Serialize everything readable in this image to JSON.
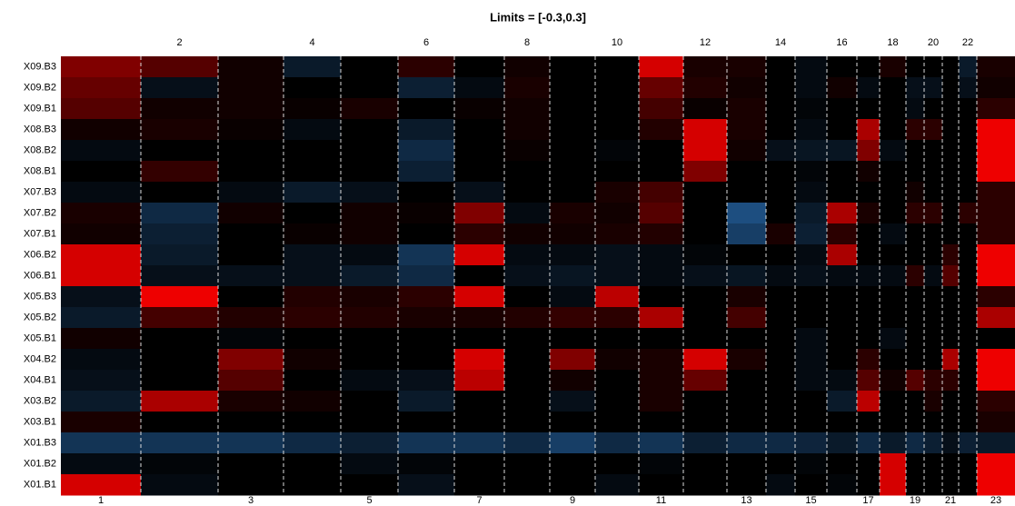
{
  "chart_data": {
    "type": "heatmap",
    "title": "Limits = [-0.3,0.3]",
    "zlim": [
      -0.3,
      0.3
    ],
    "colors": [
      "#3a9bff",
      "#000000",
      "#ff0000"
    ],
    "categories": [
      "1",
      "2",
      "3",
      "4",
      "5",
      "6",
      "7",
      "8",
      "9",
      "10",
      "11",
      "12",
      "13",
      "14",
      "15",
      "16",
      "17",
      "18",
      "19",
      "20",
      "21",
      "22",
      "23"
    ],
    "rows": [
      {
        "name": "X09.B3",
        "values": [
          0.15,
          0.1,
          0.02,
          -0.05,
          0,
          0.05,
          0,
          0.02,
          0,
          0,
          0.25,
          0.03,
          0.03,
          0,
          -0.02,
          0,
          0,
          0.03,
          0,
          0,
          0,
          -0.05,
          0.03
        ]
      },
      {
        "name": "X09.B2",
        "values": [
          0.12,
          -0.03,
          0.02,
          0,
          0,
          -0.06,
          -0.02,
          0.03,
          0,
          0,
          0.12,
          0.04,
          0.02,
          0,
          -0.02,
          0.02,
          -0.02,
          0,
          -0.03,
          -0.03,
          0,
          -0.03,
          0.02
        ]
      },
      {
        "name": "X09.B1",
        "values": [
          0.1,
          0.02,
          0.02,
          0.01,
          0.03,
          0,
          0.01,
          0.02,
          0,
          0,
          0.08,
          0.01,
          0.03,
          0,
          -0.01,
          0,
          0,
          0,
          -0.02,
          0,
          0,
          0,
          0.05
        ]
      },
      {
        "name": "X08.B3",
        "values": [
          0.02,
          0.03,
          0.01,
          -0.02,
          0,
          -0.05,
          0,
          0.02,
          0,
          0,
          0.04,
          0.25,
          0.03,
          0,
          -0.02,
          0,
          0.2,
          0,
          0.05,
          0.05,
          0,
          0,
          0.28
        ]
      },
      {
        "name": "X08.B2",
        "values": [
          -0.02,
          0,
          0,
          0,
          0,
          -0.08,
          0,
          0.01,
          0,
          -0.01,
          0,
          0.25,
          0.02,
          -0.03,
          -0.04,
          -0.04,
          0.15,
          -0.02,
          0,
          0,
          0,
          0,
          0.28
        ]
      },
      {
        "name": "X08.B1",
        "values": [
          0,
          0.06,
          0,
          0,
          0,
          -0.06,
          0,
          0,
          0,
          0,
          0,
          0.15,
          0,
          0,
          -0.01,
          0,
          0.02,
          0,
          0,
          0,
          0,
          0,
          0.28
        ]
      },
      {
        "name": "X07.B3",
        "values": [
          -0.02,
          0,
          -0.02,
          -0.05,
          -0.03,
          0,
          -0.03,
          0,
          0,
          0.03,
          0.08,
          0,
          0,
          0,
          -0.02,
          0,
          0,
          0,
          0.02,
          0,
          0,
          0,
          0.05
        ]
      },
      {
        "name": "X07.B2",
        "values": [
          0.03,
          -0.08,
          0.02,
          0,
          0.02,
          0.01,
          0.15,
          -0.02,
          0.03,
          0.02,
          0.1,
          0,
          -0.15,
          0,
          -0.05,
          0.2,
          0.03,
          0,
          0.05,
          0.05,
          0,
          0.05,
          0.05
        ]
      },
      {
        "name": "X07.B1",
        "values": [
          0.02,
          -0.06,
          0,
          0.01,
          0.02,
          0,
          0.05,
          0.02,
          0.02,
          0.03,
          0.04,
          0,
          -0.12,
          0.03,
          -0.06,
          0.05,
          0,
          -0.02,
          0,
          0,
          0,
          0,
          0.05
        ]
      },
      {
        "name": "X06.B2",
        "values": [
          0.25,
          -0.05,
          0,
          -0.03,
          -0.02,
          -0.1,
          0.25,
          -0.02,
          -0.02,
          -0.03,
          -0.02,
          -0.01,
          0,
          0,
          -0.02,
          0.2,
          0,
          0,
          0,
          0,
          0.05,
          0,
          0.28
        ]
      },
      {
        "name": "X06.B1",
        "values": [
          0.25,
          -0.03,
          -0.03,
          -0.03,
          -0.05,
          -0.08,
          0,
          -0.03,
          -0.04,
          -0.03,
          -0.02,
          -0.03,
          -0.04,
          -0.02,
          -0.03,
          -0.02,
          -0.02,
          -0.02,
          0.05,
          -0.02,
          0.1,
          0,
          0.28
        ]
      },
      {
        "name": "X05.B3",
        "values": [
          -0.03,
          0.28,
          0,
          0.04,
          0.03,
          0.05,
          0.25,
          0,
          -0.02,
          0.22,
          0,
          0,
          0.03,
          0,
          0,
          0,
          0,
          0,
          0,
          0,
          0,
          0,
          0.05
        ]
      },
      {
        "name": "X05.B2",
        "values": [
          -0.05,
          0.08,
          0.04,
          0.05,
          0.04,
          0.03,
          0.03,
          0.04,
          0.06,
          0.05,
          0.2,
          0,
          0.08,
          0,
          0,
          0,
          0,
          0,
          0,
          0,
          0,
          0,
          0.2
        ]
      },
      {
        "name": "X05.B1",
        "values": [
          0.02,
          0,
          -0.01,
          0,
          0,
          0,
          0,
          0,
          0,
          0,
          0,
          0,
          0,
          0,
          -0.02,
          0,
          0,
          -0.02,
          0,
          0,
          0,
          0,
          0
        ]
      },
      {
        "name": "X04.B2",
        "values": [
          -0.02,
          0,
          0.15,
          0.02,
          0,
          0,
          0.25,
          0,
          0.15,
          0.02,
          0.03,
          0.25,
          0.03,
          0,
          -0.02,
          0,
          0.05,
          0,
          0,
          0,
          0.2,
          0,
          0.28
        ]
      },
      {
        "name": "X04.B1",
        "values": [
          -0.03,
          0,
          0.1,
          0,
          -0.02,
          -0.03,
          0.22,
          0,
          0.02,
          0,
          0.03,
          0.12,
          0,
          0,
          -0.02,
          -0.02,
          0.1,
          0.02,
          0.1,
          0.05,
          0.05,
          0,
          0.28
        ]
      },
      {
        "name": "X03.B2",
        "values": [
          -0.05,
          0.2,
          0.03,
          0.02,
          0,
          -0.05,
          0,
          0,
          -0.03,
          0,
          0.03,
          0,
          0,
          0,
          0,
          -0.05,
          0.22,
          0,
          0,
          0.03,
          0,
          0,
          0.05
        ]
      },
      {
        "name": "X03.B1",
        "values": [
          0.03,
          0,
          0,
          0,
          0,
          0,
          0,
          0,
          0,
          0,
          0,
          0,
          0,
          0,
          0,
          0,
          0,
          0,
          0,
          0,
          0,
          0,
          0.03
        ]
      },
      {
        "name": "X01.B3",
        "values": [
          -0.1,
          -0.1,
          -0.1,
          -0.08,
          -0.06,
          -0.1,
          -0.1,
          -0.08,
          -0.12,
          -0.08,
          -0.1,
          -0.06,
          -0.08,
          -0.08,
          -0.07,
          -0.05,
          -0.08,
          -0.05,
          -0.08,
          -0.06,
          -0.03,
          -0.06,
          -0.05
        ]
      },
      {
        "name": "X01.B2",
        "values": [
          -0.02,
          -0.01,
          0,
          0,
          -0.02,
          -0.01,
          0,
          0,
          0,
          0,
          -0.01,
          0,
          0,
          0,
          -0.01,
          0,
          0,
          0.25,
          0,
          0,
          0,
          0,
          0.28
        ]
      },
      {
        "name": "X01.B1",
        "values": [
          0.25,
          -0.02,
          0,
          0,
          0,
          -0.03,
          0,
          0,
          0,
          -0.02,
          0,
          0,
          0,
          -0.02,
          0,
          -0.01,
          0,
          0.25,
          0,
          0,
          0,
          0,
          0.28
        ]
      }
    ]
  }
}
